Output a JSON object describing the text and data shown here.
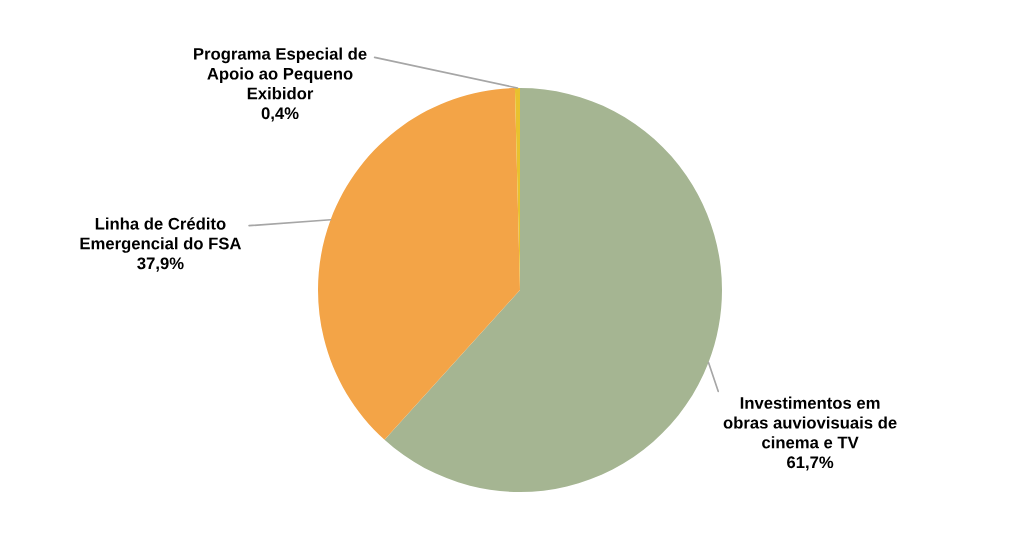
{
  "chart_data": {
    "type": "pie",
    "categories": [
      "Investimentos em\nobras auviovisuais de\ncinema e TV",
      "Linha de Crédito\nEmergencial do FSA",
      "Programa Especial de\nApoio ao Pequeno\nExibidor"
    ],
    "values": [
      61.7,
      37.9,
      0.4
    ],
    "value_labels": [
      "61,7%",
      "37,9%",
      "0,4%"
    ],
    "colors": [
      "#a5b592",
      "#f3a447",
      "#e8c12f"
    ]
  }
}
